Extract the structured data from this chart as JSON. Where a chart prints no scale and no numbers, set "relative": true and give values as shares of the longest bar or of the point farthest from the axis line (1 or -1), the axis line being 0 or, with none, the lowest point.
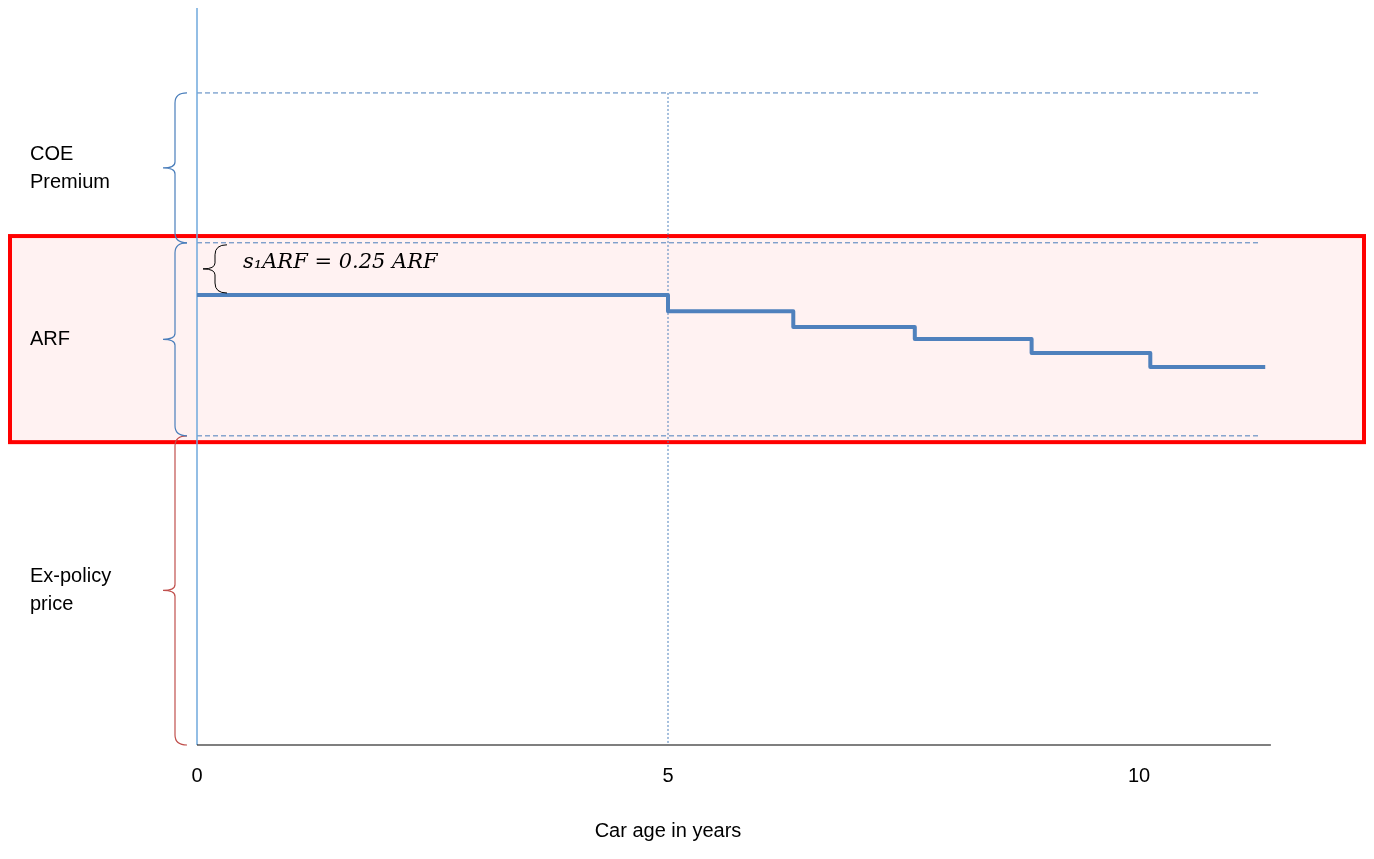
{
  "chart_data": {
    "type": "step",
    "relative": true,
    "xlabel": "Car age in years",
    "x": [
      0,
      5,
      6.33,
      7.62,
      8.86,
      10.12,
      11.34
    ],
    "series": [
      {
        "color": "#4f81bd",
        "values": [
          1,
          0.964,
          0.929,
          0.902,
          0.871,
          0.84,
          0.84
        ]
      }
    ],
    "xlim": [
      0,
      11.4
    ],
    "xticks": [
      0,
      5,
      10
    ],
    "ref_lines": [
      {
        "axis": "x",
        "value": 5,
        "color": "#4a7ebb",
        "line_style": "dotted"
      },
      {
        "axis": "y",
        "value": 1.449,
        "color": "#4a7ebb",
        "line_style": "dashed"
      },
      {
        "axis": "y",
        "value": 1.116,
        "color": "#4a7ebb",
        "line_style": "dashed"
      },
      {
        "axis": "y",
        "value": 0.687,
        "color": "#4a7ebb",
        "line_style": "dashed"
      }
    ],
    "bands": [
      {
        "axis": "y",
        "from": 0.673,
        "to": 1.131,
        "color": "#ff0000"
      }
    ],
    "annotations": [
      "COE Premium",
      "ARF",
      "Ex-policy price",
      "s₁ARF = 0.25 ARF"
    ]
  }
}
